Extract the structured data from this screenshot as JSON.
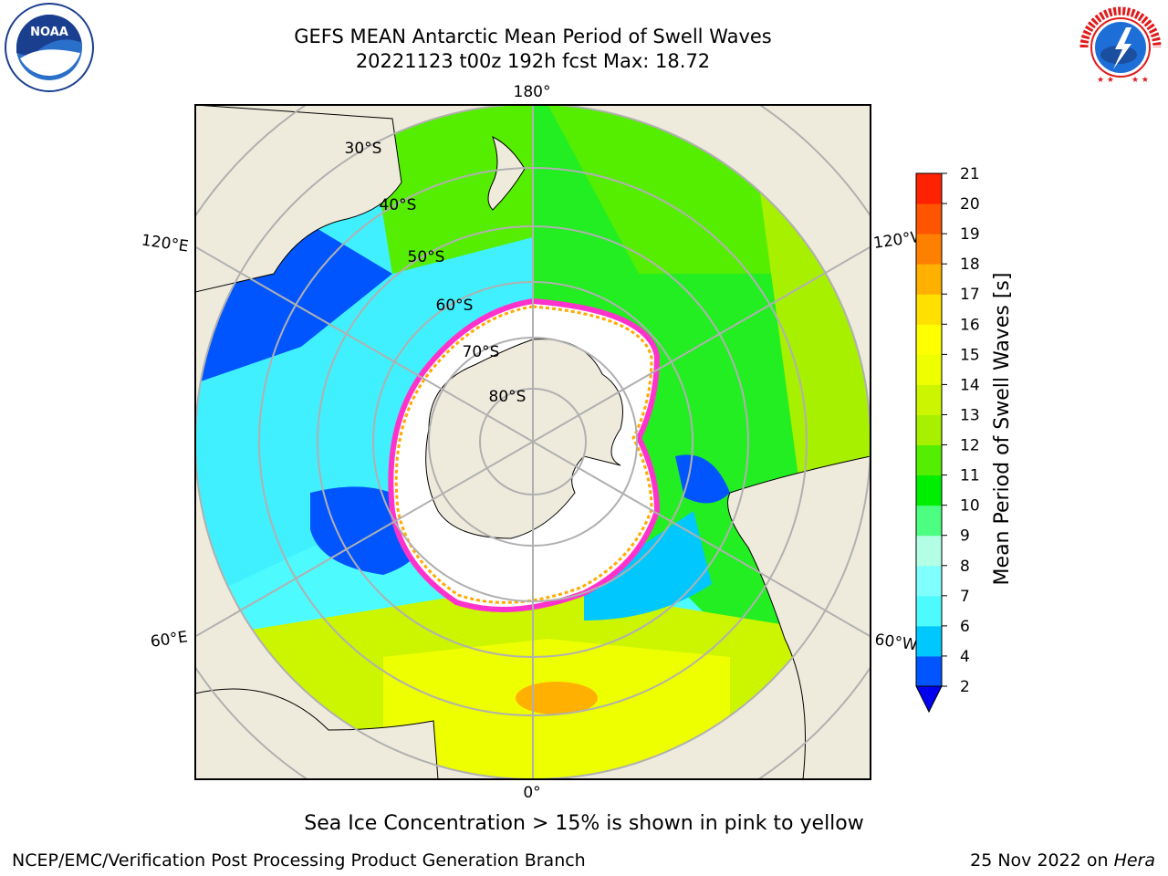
{
  "title": {
    "line1": "GEFS MEAN Antarctic Mean Period of Swell Waves",
    "line2": "20221123 t00z 192h fcst   Max: 18.72"
  },
  "logos": {
    "left": {
      "icon": "noaa-logo-icon",
      "text": "NOAA"
    },
    "right": {
      "icon": "national-weather-service-logo-icon",
      "text": "NATIONAL WEATHER SERVICE"
    }
  },
  "map": {
    "projection": "south-polar-stereographic",
    "longitude_labels": {
      "top": "180°",
      "bottom": "0°",
      "left_upper": "120°E",
      "left_lower": "60°E",
      "right_upper": "120°W",
      "right_lower": "60°W"
    },
    "latitude_labels": [
      "30°S",
      "40°S",
      "50°S",
      "60°S",
      "70°S",
      "80°S"
    ],
    "colors": {
      "land": "#efebdc",
      "sea_ice": "#ffffff",
      "grid": "#b0b0b0",
      "ice_edge_pink": "#ff33cc",
      "ice_edge_yellow": "#ffaa00"
    }
  },
  "colorbar": {
    "label": "Mean Period of Swell Waves [s]",
    "ticks": [
      "2",
      "4",
      "6",
      "7",
      "8",
      "9",
      "10",
      "11",
      "12",
      "13",
      "14",
      "15",
      "16",
      "17",
      "18",
      "19",
      "20",
      "21"
    ],
    "colors": [
      "#0055ff",
      "#00c8ff",
      "#4dfbff",
      "#80ffff",
      "#b3ffe6",
      "#4dff80",
      "#00ee00",
      "#55ee00",
      "#a6f000",
      "#ccf500",
      "#eeff00",
      "#ffff00",
      "#ffe000",
      "#ffb000",
      "#ff8000",
      "#ff5500",
      "#ff2200",
      "#ff0000"
    ],
    "under_color": "#0000ee"
  },
  "caption": "Sea Ice Concentration > 15% is shown in pink to yellow",
  "footer": {
    "credit": "NCEP/EMC/Verification Post Processing Product Generation Branch",
    "date": "25 Nov 2022 on ",
    "host": "Hera"
  }
}
